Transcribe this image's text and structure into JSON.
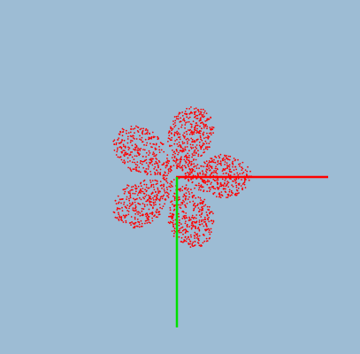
{
  "scene": {
    "background_color": "#9dbcd4",
    "point_color": "#ff0000",
    "x_axis_color": "#ff0000",
    "y_axis_color": "#00e000",
    "petal_count": 5,
    "point_count": 1800
  }
}
